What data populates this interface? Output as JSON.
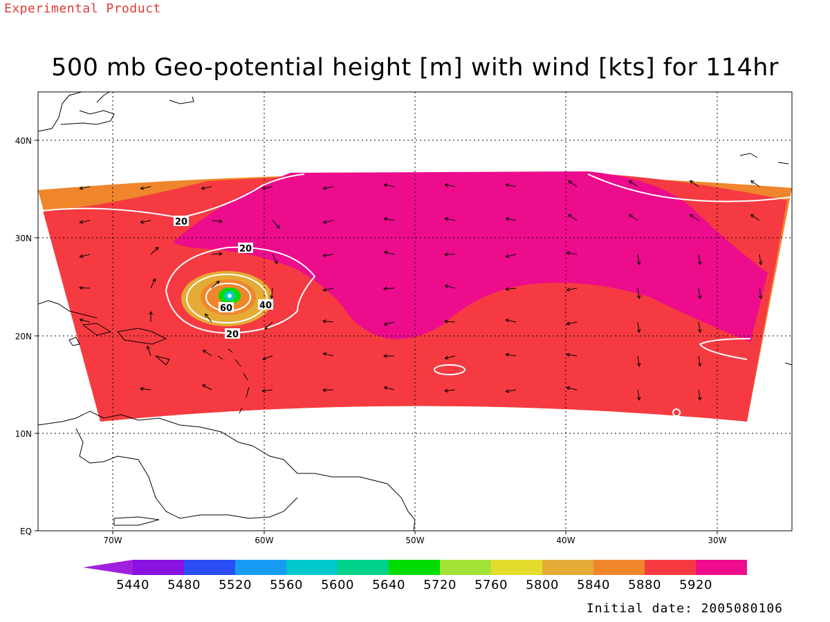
{
  "header": {
    "experimental": "Experimental Product",
    "title": "500 mb Geo-potential height [m] with wind [kts] for 114hr"
  },
  "footer": {
    "initial_date": "Initial date: 2005080106"
  },
  "map": {
    "lat_labels": [
      "40N",
      "30N",
      "20N",
      "10N",
      "EQ"
    ],
    "lon_labels": [
      "70W",
      "60W",
      "50W",
      "40W",
      "30W"
    ],
    "contour_labels": [
      "20",
      "20",
      "20",
      "40",
      "60"
    ],
    "fill_colors": {
      "ring": "#f0862c",
      "main": "#f53b41",
      "high": "#ec0c8c",
      "yellowish": "#e4ac36"
    }
  },
  "colorbar": {
    "labels": [
      "5440",
      "5480",
      "5520",
      "5560",
      "5600",
      "5640",
      "5720",
      "5760",
      "5800",
      "5840",
      "5880",
      "5920"
    ],
    "colors": [
      "#a020e0",
      "#8a12e0",
      "#2a4df5",
      "#179bf5",
      "#00c9cb",
      "#00d28c",
      "#03dc03",
      "#a3e237",
      "#e3dc2d",
      "#e4ac36",
      "#f0862c",
      "#f53b41",
      "#ec0c8c",
      "#ec0c8c"
    ]
  }
}
